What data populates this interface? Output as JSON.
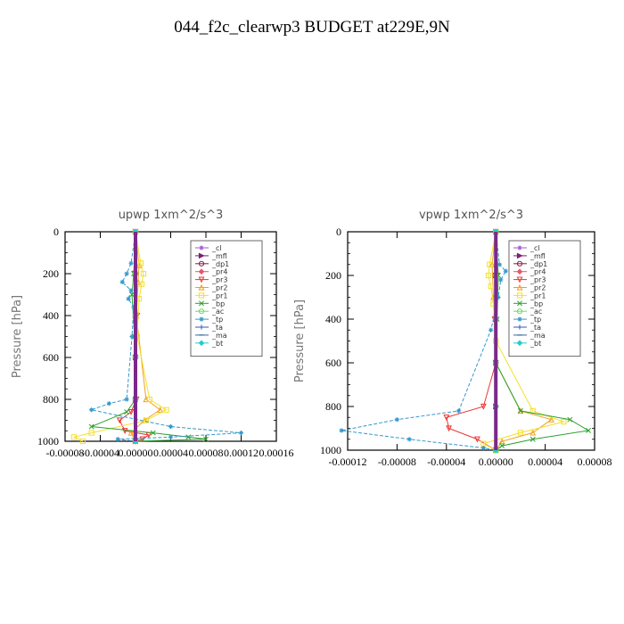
{
  "title": "044_f2c_clearwp3  BUDGET at229E,9N",
  "chart_data": [
    {
      "type": "line",
      "title": "upwp   1xm^2/s^3",
      "ylabel": "Pressure  [hPa]",
      "xlabel": "",
      "xlim": [
        -8e-05,
        0.00016
      ],
      "ylim": [
        1000,
        0
      ],
      "xticks": [
        -8e-05,
        -4e-05,
        0.0,
        4e-05,
        8e-05,
        0.00012,
        0.00016
      ],
      "xtick_labels": [
        "-0.00008",
        "-0.00004",
        "0.00000",
        "0.00004",
        "0.00008",
        "0.00012",
        "0.00016"
      ],
      "yticks": [
        0,
        200,
        400,
        600,
        800,
        1000
      ],
      "ytick_labels": [
        "0",
        "200",
        "400",
        "600",
        "800",
        "1000"
      ],
      "legend_position": "top-right",
      "series": [
        {
          "name": "_cl",
          "color": "#9b59d0",
          "marker": "star",
          "x": [
            0,
            0,
            0,
            0,
            0,
            0
          ],
          "y": [
            0,
            200,
            400,
            600,
            800,
            1000
          ]
        },
        {
          "name": "_mfl",
          "color": "#7a1f7a",
          "marker": "tri-right",
          "x": [
            0,
            0,
            0,
            0,
            0,
            0
          ],
          "y": [
            0,
            200,
            400,
            600,
            800,
            1000
          ]
        },
        {
          "name": "_dp1",
          "color": "#8b1a4a",
          "marker": "circle",
          "x": [
            0,
            0,
            0,
            0,
            0,
            0
          ],
          "y": [
            0,
            200,
            400,
            600,
            800,
            1000
          ]
        },
        {
          "name": "_pr4",
          "color": "#e8556a",
          "marker": "diamond",
          "x": [
            0,
            0,
            0,
            0,
            0,
            0
          ],
          "y": [
            0,
            200,
            400,
            600,
            800,
            1000
          ]
        },
        {
          "name": "_pr3",
          "color": "#ee3333",
          "marker": "tri-down",
          "x": [
            0,
            -1e-06,
            2e-06,
            0,
            1e-06,
            -5e-06,
            -1.8e-05,
            -1.2e-05,
            1.5e-05,
            8e-06,
            0
          ],
          "y": [
            0,
            200,
            400,
            600,
            800,
            860,
            900,
            950,
            970,
            990,
            1000
          ]
        },
        {
          "name": "_pr2",
          "color": "#f0a020",
          "marker": "tri-up",
          "x": [
            0,
            4e-06,
            3e-06,
            1e-06,
            1.2e-05,
            2.8e-05,
            1e-05,
            -5e-06,
            0
          ],
          "y": [
            0,
            160,
            240,
            400,
            800,
            850,
            900,
            960,
            1000
          ]
        },
        {
          "name": "_pr1",
          "color": "#f2e02a",
          "marker": "square",
          "x": [
            0,
            6e-06,
            9e-06,
            7e-06,
            4e-06,
            2e-06,
            1.6e-05,
            3.5e-05,
            1.2e-05,
            -5e-05,
            -7e-05,
            -6e-05
          ],
          "y": [
            0,
            150,
            200,
            250,
            320,
            500,
            800,
            850,
            900,
            960,
            980,
            1000
          ]
        },
        {
          "name": "_bp",
          "color": "#2aa02a",
          "marker": "x",
          "x": [
            0,
            -2e-06,
            -4e-06,
            -1e-06,
            0,
            -1e-05,
            -5e-05,
            2e-05,
            6e-05,
            8e-05,
            0
          ],
          "y": [
            0,
            200,
            300,
            500,
            800,
            860,
            930,
            960,
            980,
            990,
            1000
          ]
        },
        {
          "name": "_ac",
          "color": "#66dd66",
          "marker": "circle",
          "x": [
            0,
            0,
            0,
            0,
            0,
            0
          ],
          "y": [
            0,
            200,
            400,
            600,
            800,
            1000
          ]
        },
        {
          "name": "_tp",
          "color": "#3399cc",
          "marker": "asterisk",
          "x": [
            0,
            -5e-06,
            -1e-05,
            -1.5e-05,
            -5e-06,
            -8e-06,
            -2e-06,
            -4e-06,
            -1e-05,
            -3e-05,
            -5e-05,
            4e-05,
            0.00012,
            4e-05,
            -2e-05,
            0
          ],
          "y": [
            0,
            150,
            200,
            240,
            280,
            320,
            360,
            500,
            800,
            820,
            850,
            930,
            960,
            980,
            990,
            1000
          ]
        },
        {
          "name": "_ta",
          "color": "#3355bb",
          "marker": "plus",
          "x": [
            0,
            0,
            0,
            0,
            0,
            0
          ],
          "y": [
            0,
            200,
            400,
            600,
            800,
            1000
          ]
        },
        {
          "name": "_ma",
          "color": "#336699",
          "marker": "dash",
          "x": [
            0,
            0,
            0,
            0,
            0,
            0
          ],
          "y": [
            0,
            200,
            400,
            600,
            800,
            1000
          ]
        },
        {
          "name": "_bt",
          "color": "#22cccc",
          "marker": "diamond",
          "x": [
            0,
            0,
            0,
            0,
            0,
            0
          ],
          "y": [
            0,
            200,
            400,
            600,
            800,
            1000
          ]
        }
      ]
    },
    {
      "type": "line",
      "title": "vpwp   1xm^2/s^3",
      "ylabel": "Pressure  [hPa]",
      "xlabel": "",
      "xlim": [
        -0.00012,
        8e-05
      ],
      "ylim": [
        1000,
        0
      ],
      "xticks": [
        -0.00012,
        -8e-05,
        -4e-05,
        0.0,
        4e-05,
        8e-05
      ],
      "xtick_labels": [
        "-0.00012",
        "-0.00008",
        "-0.00004",
        "0.00000",
        "0.00004",
        "0.00008"
      ],
      "yticks": [
        0,
        200,
        400,
        600,
        800,
        1000
      ],
      "ytick_labels": [
        "0",
        "200",
        "400",
        "600",
        "800",
        "1000"
      ],
      "legend_position": "top-right",
      "series": [
        {
          "name": "_cl",
          "color": "#9b59d0",
          "marker": "star",
          "x": [
            0,
            0,
            0,
            0,
            0,
            0
          ],
          "y": [
            0,
            200,
            400,
            600,
            800,
            1000
          ]
        },
        {
          "name": "_mfl",
          "color": "#7a1f7a",
          "marker": "tri-right",
          "x": [
            0,
            0,
            0,
            0,
            0,
            0
          ],
          "y": [
            0,
            200,
            400,
            600,
            800,
            1000
          ]
        },
        {
          "name": "_dp1",
          "color": "#8b1a4a",
          "marker": "circle",
          "x": [
            0,
            0,
            0,
            0,
            0,
            0
          ],
          "y": [
            0,
            200,
            400,
            600,
            800,
            1000
          ]
        },
        {
          "name": "_pr4",
          "color": "#e8556a",
          "marker": "diamond",
          "x": [
            0,
            0,
            0,
            0,
            0,
            0
          ],
          "y": [
            0,
            200,
            400,
            600,
            800,
            1000
          ]
        },
        {
          "name": "_pr3",
          "color": "#ee3333",
          "marker": "tri-down",
          "x": [
            0,
            1e-06,
            -1e-06,
            0,
            -1e-05,
            -4e-05,
            -3.8e-05,
            -1.5e-05,
            0
          ],
          "y": [
            0,
            200,
            400,
            600,
            800,
            850,
            900,
            950,
            1000
          ]
        },
        {
          "name": "_pr2",
          "color": "#f0a020",
          "marker": "tri-up",
          "x": [
            0,
            -3e-06,
            -2e-06,
            0,
            2e-05,
            4.5e-05,
            3e-05,
            5e-06,
            0
          ],
          "y": [
            0,
            150,
            300,
            600,
            820,
            860,
            920,
            960,
            1000
          ]
        },
        {
          "name": "_pr1",
          "color": "#f2e02a",
          "marker": "square",
          "x": [
            0,
            -5e-06,
            -6e-06,
            -4e-06,
            -2e-06,
            0,
            3e-05,
            5.5e-05,
            2e-05,
            -1e-05,
            0
          ],
          "y": [
            0,
            150,
            200,
            250,
            330,
            500,
            820,
            870,
            920,
            970,
            1000
          ]
        },
        {
          "name": "_bp",
          "color": "#2aa02a",
          "marker": "x",
          "x": [
            0,
            2e-06,
            1e-06,
            0,
            2e-05,
            6e-05,
            7.5e-05,
            3e-05,
            5e-06,
            0
          ],
          "y": [
            0,
            200,
            400,
            600,
            820,
            860,
            910,
            950,
            980,
            1000
          ]
        },
        {
          "name": "_ac",
          "color": "#66dd66",
          "marker": "circle",
          "x": [
            0,
            0,
            0,
            0,
            0,
            0
          ],
          "y": [
            0,
            200,
            400,
            600,
            800,
            1000
          ]
        },
        {
          "name": "_tp",
          "color": "#3399cc",
          "marker": "asterisk",
          "x": [
            0,
            3e-06,
            8e-06,
            4e-06,
            2e-06,
            -4e-06,
            -3e-05,
            -8e-05,
            -0.000125,
            -7e-05,
            -1e-05,
            0
          ],
          "y": [
            0,
            150,
            180,
            220,
            300,
            450,
            820,
            860,
            910,
            950,
            990,
            1000
          ]
        },
        {
          "name": "_ta",
          "color": "#3355bb",
          "marker": "plus",
          "x": [
            0,
            0,
            0,
            0,
            0,
            0
          ],
          "y": [
            0,
            200,
            400,
            600,
            800,
            1000
          ]
        },
        {
          "name": "_ma",
          "color": "#336699",
          "marker": "dash",
          "x": [
            0,
            0,
            0,
            0,
            0,
            0
          ],
          "y": [
            0,
            200,
            400,
            600,
            800,
            1000
          ]
        },
        {
          "name": "_bt",
          "color": "#22cccc",
          "marker": "diamond",
          "x": [
            0,
            0,
            0,
            0,
            0,
            0
          ],
          "y": [
            0,
            200,
            400,
            600,
            800,
            1000
          ]
        }
      ]
    }
  ]
}
